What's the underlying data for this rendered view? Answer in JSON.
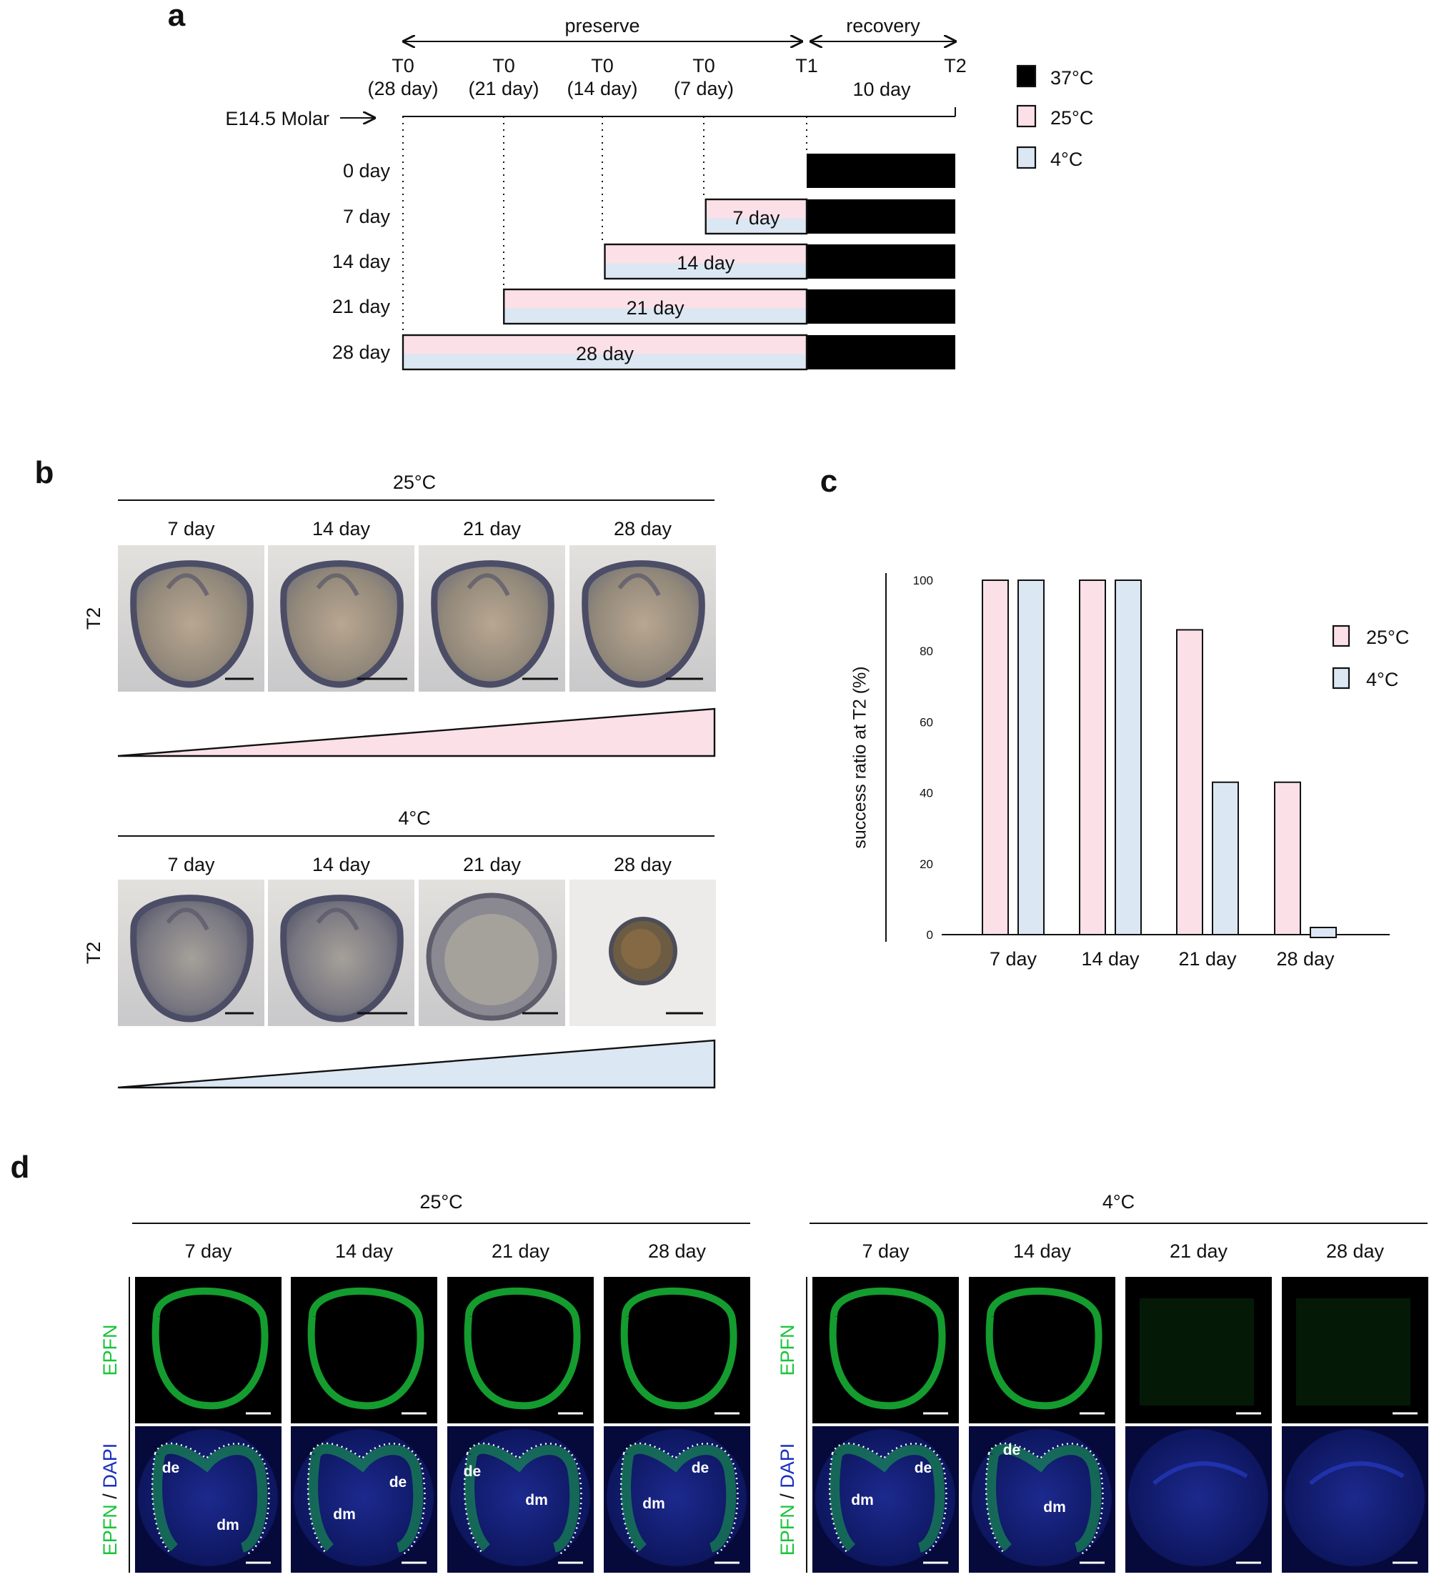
{
  "panel_labels": {
    "a": "a",
    "b": "b",
    "c": "c",
    "d": "d"
  },
  "colors": {
    "black": "#000000",
    "pink": "#fbe0e8",
    "blue": "#dbe7f2",
    "green": "#19c33a",
    "dapi": "#1a2fbf"
  },
  "panel_a": {
    "phase_preserve": "preserve",
    "phase_recovery": "recovery",
    "timepoints": [
      {
        "label": "T0",
        "sub": "(28 day)"
      },
      {
        "label": "T0",
        "sub": "(21 day)"
      },
      {
        "label": "T0",
        "sub": "(14 day)"
      },
      {
        "label": "T0",
        "sub": "(7 day)"
      },
      {
        "label": "T1",
        "sub": ""
      },
      {
        "label": "T2",
        "sub": ""
      }
    ],
    "recovery_duration": "10 day",
    "start_label": "E14.5 Molar",
    "rows": [
      {
        "label": "0 day",
        "bar_label": "",
        "preserve_days": 0
      },
      {
        "label": "7 day",
        "bar_label": "7 day",
        "preserve_days": 7
      },
      {
        "label": "14 day",
        "bar_label": "14 day",
        "preserve_days": 14
      },
      {
        "label": "21 day",
        "bar_label": "21 day",
        "preserve_days": 21
      },
      {
        "label": "28 day",
        "bar_label": "28 day",
        "preserve_days": 28
      }
    ],
    "legend": [
      {
        "label": "37°C",
        "color": "#000000"
      },
      {
        "label": "25°C",
        "color": "#fbe0e8"
      },
      {
        "label": "4°C",
        "color": "#dbe7f2"
      }
    ]
  },
  "panel_b": {
    "groups": [
      {
        "temp": "25°C",
        "row_label": "T2",
        "days": [
          "7 day",
          "14 day",
          "21 day",
          "28 day"
        ],
        "wedge_color": "#fbe0e8"
      },
      {
        "temp": "4°C",
        "row_label": "T2",
        "days": [
          "7 day",
          "14 day",
          "21 day",
          "28 day"
        ],
        "wedge_color": "#dbe7f2"
      }
    ]
  },
  "chart_data": {
    "type": "bar",
    "categories": [
      "7 day",
      "14 day",
      "21 day",
      "28 day"
    ],
    "series": [
      {
        "name": "25°C",
        "values": [
          100,
          100,
          86,
          43
        ],
        "color": "#fbe0e8"
      },
      {
        "name": "4°C",
        "values": [
          100,
          100,
          43,
          0
        ],
        "color": "#dbe7f2"
      }
    ],
    "xlabel": "",
    "ylabel": "success ratio at T2 (%)",
    "ylim": [
      0,
      100
    ],
    "yticks": [
      "0",
      "20",
      "40",
      "60",
      "80",
      "100"
    ],
    "legend_position": "right"
  },
  "panel_d": {
    "groups": [
      {
        "temp": "25°C",
        "days": [
          "7 day",
          "14 day",
          "21 day",
          "28 day"
        ]
      },
      {
        "temp": "4°C",
        "days": [
          "7 day",
          "14 day",
          "21 day",
          "28 day"
        ]
      }
    ],
    "row1_label": "EPFN",
    "row2_label_a": "EPFN",
    "row2_label_sep": " / ",
    "row2_label_b": "DAPI",
    "annotations": {
      "de": "de",
      "dm": "dm"
    }
  }
}
